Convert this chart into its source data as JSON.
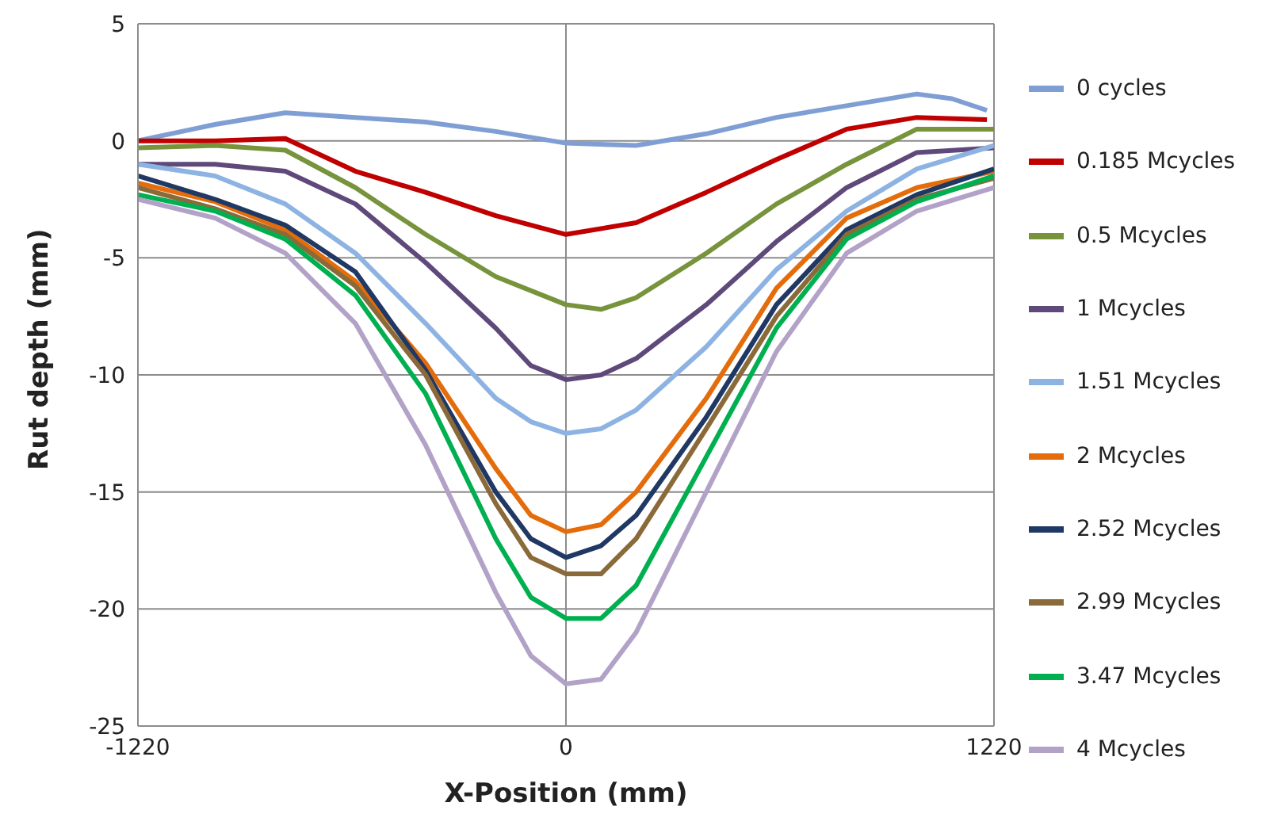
{
  "chart_data": {
    "type": "line",
    "xlabel": "X-Position (mm)",
    "ylabel": "Rut depth (mm)",
    "xlim": [
      -1220,
      1220
    ],
    "xticks": [
      -1220,
      0,
      1220
    ],
    "ylim": [
      -25,
      5
    ],
    "yticks": [
      -25,
      -20,
      -15,
      -10,
      -5,
      0,
      5
    ],
    "grid": true,
    "legend": "right",
    "marker": "none",
    "line_style": "solid",
    "series": [
      {
        "name": "0 cycles",
        "color": "#7f9fd4",
        "x": [
          -1220,
          -1000,
          -800,
          -600,
          -400,
          -200,
          0,
          200,
          400,
          600,
          800,
          1000,
          1100,
          1200
        ],
        "values": [
          0,
          0.7,
          1.2,
          1.0,
          0.8,
          0.4,
          -0.1,
          -0.2,
          0.3,
          1.0,
          1.5,
          2.0,
          1.8,
          1.3
        ]
      },
      {
        "name": "0.185 Mcycles",
        "color": "#c00000",
        "x": [
          -1220,
          -1000,
          -800,
          -600,
          -400,
          -200,
          0,
          200,
          400,
          600,
          800,
          1000,
          1200
        ],
        "values": [
          0,
          0,
          0.1,
          -1.3,
          -2.2,
          -3.2,
          -4.0,
          -3.5,
          -2.2,
          -0.8,
          0.5,
          1.0,
          0.9
        ]
      },
      {
        "name": "0.5 Mcycles",
        "color": "#77933c",
        "x": [
          -1220,
          -1000,
          -800,
          -600,
          -400,
          -200,
          0,
          100,
          200,
          400,
          600,
          800,
          1000,
          1220
        ],
        "values": [
          -0.3,
          -0.2,
          -0.4,
          -2.0,
          -4.0,
          -5.8,
          -7.0,
          -7.2,
          -6.7,
          -4.8,
          -2.7,
          -1.0,
          0.5,
          0.5
        ]
      },
      {
        "name": "1 Mcycles",
        "color": "#5f497a",
        "x": [
          -1220,
          -1000,
          -800,
          -600,
          -400,
          -200,
          -100,
          0,
          100,
          200,
          400,
          600,
          800,
          1000,
          1220
        ],
        "values": [
          -1.0,
          -1.0,
          -1.3,
          -2.7,
          -5.2,
          -8.0,
          -9.6,
          -10.2,
          -10.0,
          -9.3,
          -7.0,
          -4.3,
          -2.0,
          -0.5,
          -0.3
        ]
      },
      {
        "name": "1.51 Mcycles",
        "color": "#8db3e2",
        "x": [
          -1220,
          -1000,
          -800,
          -600,
          -400,
          -200,
          -100,
          0,
          100,
          200,
          400,
          600,
          800,
          1000,
          1220
        ],
        "values": [
          -1.0,
          -1.5,
          -2.7,
          -4.8,
          -7.8,
          -11.0,
          -12.0,
          -12.5,
          -12.3,
          -11.5,
          -8.8,
          -5.5,
          -3.0,
          -1.2,
          -0.2
        ]
      },
      {
        "name": "2 Mcycles",
        "color": "#e46c0a",
        "x": [
          -1220,
          -1000,
          -800,
          -600,
          -400,
          -200,
          -100,
          0,
          100,
          200,
          400,
          600,
          800,
          1000,
          1220
        ],
        "values": [
          -1.8,
          -2.6,
          -3.8,
          -6.0,
          -9.5,
          -14.0,
          -16.0,
          -16.7,
          -16.4,
          -15.0,
          -11.0,
          -6.3,
          -3.3,
          -2.0,
          -1.3
        ]
      },
      {
        "name": "2.52 Mcycles",
        "color": "#1f3864",
        "x": [
          -1220,
          -1000,
          -800,
          -600,
          -400,
          -200,
          -100,
          0,
          100,
          200,
          400,
          600,
          800,
          1000,
          1220
        ],
        "values": [
          -1.5,
          -2.5,
          -3.6,
          -5.6,
          -9.8,
          -15.0,
          -17.0,
          -17.8,
          -17.3,
          -16.0,
          -11.8,
          -7.0,
          -3.8,
          -2.3,
          -1.2
        ]
      },
      {
        "name": "2.99 Mcycles",
        "color": "#8b6a3a",
        "x": [
          -1220,
          -1000,
          -800,
          -600,
          -400,
          -200,
          -100,
          0,
          100,
          200,
          400,
          600,
          800,
          1000,
          1220
        ],
        "values": [
          -2.0,
          -2.9,
          -4.0,
          -6.2,
          -10.0,
          -15.5,
          -17.8,
          -18.5,
          -18.5,
          -17.0,
          -12.3,
          -7.5,
          -4.0,
          -2.5,
          -1.6
        ]
      },
      {
        "name": "3.47 Mcycles",
        "color": "#00b050",
        "x": [
          -1220,
          -1000,
          -800,
          -600,
          -400,
          -200,
          -100,
          0,
          100,
          200,
          400,
          600,
          800,
          1000,
          1220
        ],
        "values": [
          -2.3,
          -3.0,
          -4.2,
          -6.6,
          -10.8,
          -17.0,
          -19.5,
          -20.4,
          -20.4,
          -19.0,
          -13.5,
          -8.0,
          -4.2,
          -2.6,
          -1.5
        ]
      },
      {
        "name": "4 Mcycles",
        "color": "#b3a2c7",
        "x": [
          -1220,
          -1000,
          -800,
          -600,
          -400,
          -200,
          -100,
          0,
          100,
          200,
          400,
          600,
          800,
          1000,
          1220
        ],
        "values": [
          -2.5,
          -3.3,
          -4.8,
          -7.8,
          -13.0,
          -19.3,
          -22.0,
          -23.2,
          -23.0,
          -21.0,
          -15.0,
          -9.0,
          -4.8,
          -3.0,
          -2.0
        ]
      }
    ]
  }
}
